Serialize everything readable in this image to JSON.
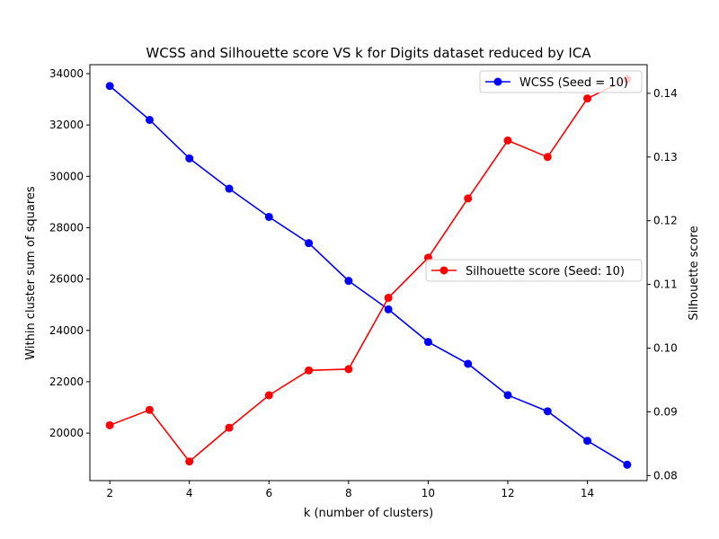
{
  "chart_data": {
    "type": "line",
    "title": "WCSS and Silhouette score VS k for Digits dataset reduced by ICA",
    "xlabel": "k (number of clusters)",
    "ylabel_left": "Within cluster sum of squares",
    "ylabel_right": "Silhouette score",
    "xlim": [
      1.5,
      15.5
    ],
    "xticks": [
      2,
      4,
      6,
      8,
      10,
      12,
      14
    ],
    "ylim_left": [
      18150,
      34350
    ],
    "yticks_left": [
      20000,
      22000,
      24000,
      26000,
      28000,
      30000,
      32000,
      34000
    ],
    "ylim_right": [
      0.0792,
      0.1445
    ],
    "yticks_right": [
      0.08,
      0.09,
      0.1,
      0.11,
      0.12,
      0.13,
      0.14
    ],
    "grid": false,
    "x": [
      2,
      3,
      4,
      5,
      6,
      7,
      8,
      9,
      10,
      11,
      12,
      13,
      14,
      15
    ],
    "series": [
      {
        "name": "WCSS (Seed = 10)",
        "axis": "left",
        "color": "#0000ff",
        "legend_position": "upper right",
        "values": [
          33520,
          32200,
          30700,
          29520,
          28420,
          27400,
          25930,
          24820,
          23550,
          22700,
          21480,
          20850,
          19700,
          18770
        ]
      },
      {
        "name": "Silhouette score (Seed: 10)",
        "axis": "right",
        "color": "#ff0000",
        "legend_position": "center right",
        "values": [
          0.0879,
          0.0903,
          0.0822,
          0.0875,
          0.0926,
          0.0965,
          0.0967,
          0.1079,
          0.1142,
          0.1235,
          0.1326,
          0.13,
          0.1392,
          0.1422
        ]
      }
    ]
  }
}
